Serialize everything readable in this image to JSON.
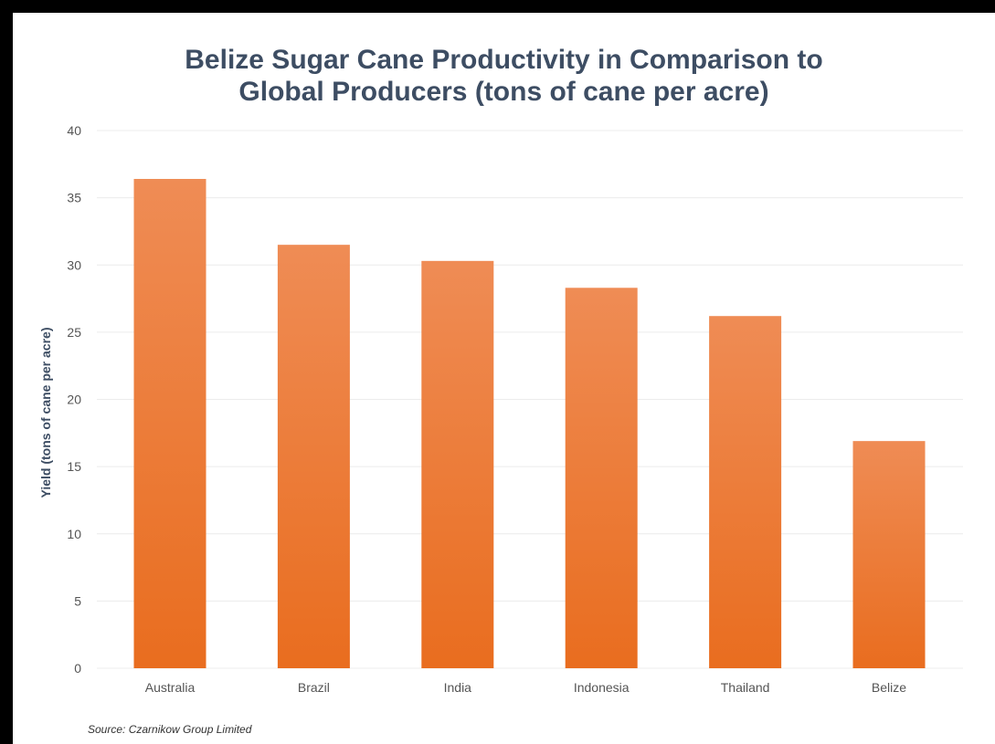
{
  "chart_data": {
    "type": "bar",
    "title_lines": [
      "Belize Sugar Cane Productivity in Comparison to",
      "Global Producers (tons of cane per acre)"
    ],
    "ylabel": "Yield (tons of cane per acre)",
    "xlabel": "",
    "categories": [
      "Australia",
      "Brazil",
      "India",
      "Indonesia",
      "Thailand",
      "Belize"
    ],
    "values": [
      36.4,
      31.5,
      30.3,
      28.3,
      26.2,
      16.9
    ],
    "ylim": [
      0,
      40
    ],
    "yticks": [
      0,
      5,
      10,
      15,
      20,
      25,
      30,
      35,
      40
    ],
    "grid": true,
    "legend": "none",
    "bar_color_top": "#ef8c55",
    "bar_color_bottom": "#e96d1f",
    "source": "Source: Czarnikow Group Limited"
  },
  "colors": {
    "title": "#3d4d63",
    "gridline": "#ececec",
    "frame": "#000000"
  }
}
